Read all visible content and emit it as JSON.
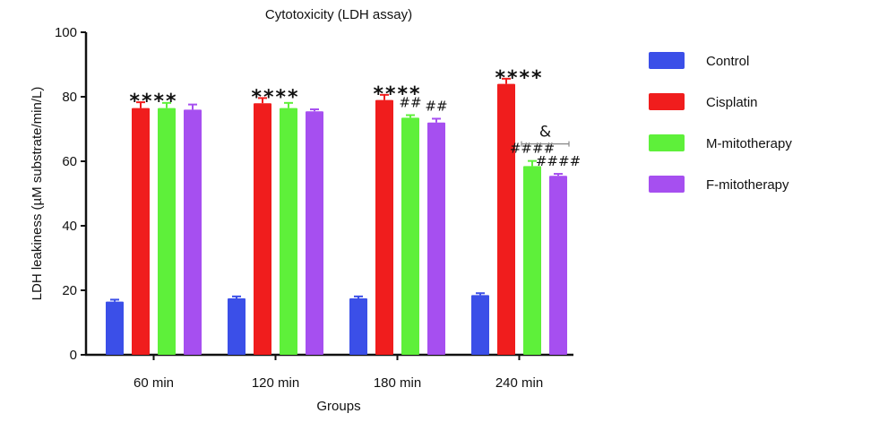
{
  "chart_data": {
    "type": "bar",
    "title": "Cytotoxicity (LDH assay)",
    "xlabel": "Groups",
    "ylabel": "LDH leakiness (µM substrate/min/L)",
    "ylim": [
      0,
      100
    ],
    "yticks": [
      0,
      20,
      40,
      60,
      80,
      100
    ],
    "categories": [
      "60 min",
      "120 min",
      "180 min",
      "240 min"
    ],
    "series": [
      {
        "name": "Control",
        "color": "#3b4fe8",
        "values": [
          16.5,
          17.5,
          17.5,
          18.5
        ],
        "errors": [
          0.6,
          0.6,
          0.6,
          0.6
        ]
      },
      {
        "name": "Cisplatin",
        "color": "#f01d1d",
        "values": [
          76.5,
          78,
          79,
          84
        ],
        "errors": [
          1.8,
          1.6,
          1.6,
          1.6
        ]
      },
      {
        "name": "M-mitotherapy",
        "color": "#5ef03a",
        "values": [
          76.5,
          76.5,
          73.5,
          58.5
        ],
        "errors": [
          1.6,
          1.6,
          0.8,
          1.6
        ]
      },
      {
        "name": "F-mitotherapy",
        "color": "#a64ff0",
        "values": [
          76,
          75.5,
          72,
          55.5
        ],
        "errors": [
          1.6,
          0.6,
          1.2,
          0.6
        ]
      }
    ],
    "annotations": [
      {
        "text": "****",
        "category": 0,
        "over_series": [
          1,
          2
        ]
      },
      {
        "text": "****",
        "category": 1,
        "over_series": [
          1,
          2
        ]
      },
      {
        "text": "****",
        "category": 2,
        "over_series": [
          1,
          2
        ]
      },
      {
        "text": "****",
        "category": 3,
        "over_series": [
          1,
          2
        ]
      },
      {
        "text": "##",
        "category": 2,
        "over_series": [
          2,
          2
        ]
      },
      {
        "text": "##",
        "category": 2,
        "over_series": [
          3,
          3
        ]
      },
      {
        "text": "####",
        "category": 3,
        "over_series": [
          2,
          2
        ]
      },
      {
        "text": "####",
        "category": 3,
        "over_series": [
          3,
          3
        ]
      },
      {
        "text": "&",
        "category": 3,
        "over_series": [
          2,
          3
        ],
        "bracket": true
      }
    ],
    "legend_position": "right",
    "grid": false
  }
}
